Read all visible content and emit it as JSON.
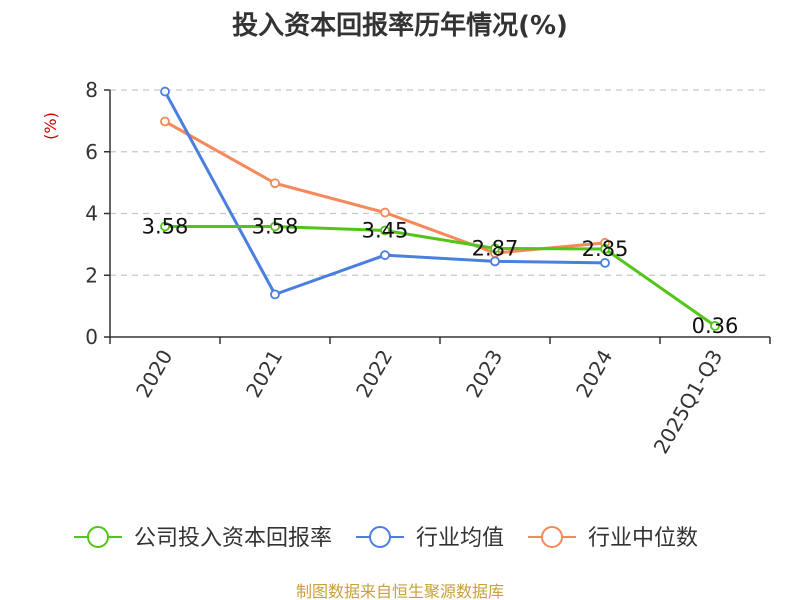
{
  "chart_data": {
    "type": "line",
    "title": "投入资本回报率历年情况(%)",
    "ylabel": "(%)",
    "xlabel": "",
    "categories": [
      "2020",
      "2021",
      "2022",
      "2023",
      "2024",
      "2025Q1-Q3"
    ],
    "ylim": [
      0,
      8
    ],
    "yticks": [
      0,
      2,
      4,
      6,
      8
    ],
    "grid": true,
    "legend_position": "bottom",
    "series": [
      {
        "name": "公司投入资本回报率",
        "color": "#52c41a",
        "values": [
          3.58,
          3.58,
          3.45,
          2.87,
          2.85,
          0.36
        ],
        "labels": [
          "3.58",
          "3.58",
          "3.45",
          "2.87",
          "2.85",
          "0.36"
        ]
      },
      {
        "name": "行业均值",
        "color": "#4a7fe0",
        "values": [
          7.95,
          1.38,
          2.65,
          2.45,
          2.4,
          null
        ]
      },
      {
        "name": "行业中位数",
        "color": "#f5895a",
        "values": [
          6.98,
          4.98,
          4.03,
          2.72,
          3.05,
          null
        ]
      }
    ]
  },
  "source": "制图数据来自恒生聚源数据库"
}
